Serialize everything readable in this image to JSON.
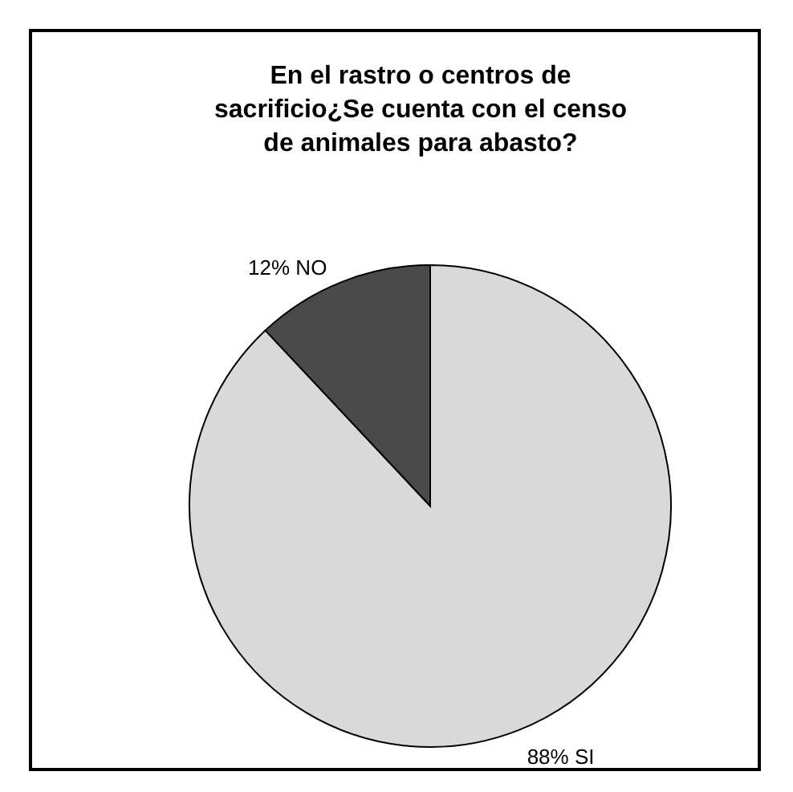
{
  "chart_data": {
    "type": "pie",
    "title": "En el rastro o centros de sacrificio¿Se cuenta con el censo de animales para abasto?",
    "categories": [
      "SI",
      "NO"
    ],
    "values": [
      88,
      12
    ],
    "colors": [
      "#d9d9d9",
      "#4a4a4a"
    ],
    "value_labels": [
      "88%",
      "12%"
    ],
    "legend": false
  }
}
